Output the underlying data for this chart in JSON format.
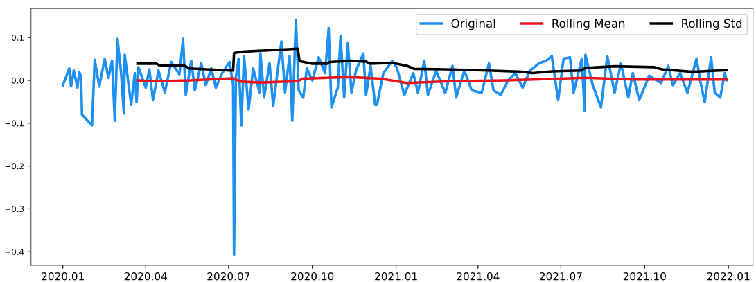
{
  "chart_data": {
    "type": "line",
    "legend": "top right",
    "grid": false,
    "line_style": "solid",
    "marker": "none",
    "xlim": [
      "2019-11-27",
      "2022-01-28"
    ],
    "ylim": [
      -0.432,
      0.168
    ],
    "xticks": [
      {
        "value": "2020-01-01",
        "label": "2020.01"
      },
      {
        "value": "2020-04-01",
        "label": "2020.04"
      },
      {
        "value": "2020-07-01",
        "label": "2020.07"
      },
      {
        "value": "2020-10-01",
        "label": "2020.10"
      },
      {
        "value": "2021-01-01",
        "label": "2021.01"
      },
      {
        "value": "2021-04-01",
        "label": "2021.04"
      },
      {
        "value": "2021-07-01",
        "label": "2021.07"
      },
      {
        "value": "2021-10-01",
        "label": "2021.10"
      },
      {
        "value": "2022-01-01",
        "label": "2022.01"
      }
    ],
    "yticks": [
      {
        "value": 0.1,
        "label": "0.1"
      },
      {
        "value": 0,
        "label": "0.0"
      },
      {
        "value": -0.1,
        "label": "−0.1"
      },
      {
        "value": -0.2,
        "label": "−0.2"
      },
      {
        "value": -0.3,
        "label": "−0.3"
      },
      {
        "value": -0.4,
        "label": "−0.4"
      }
    ],
    "series": [
      {
        "name": "Original",
        "color": "#1e90f0",
        "x": [
          "2020-01-01",
          "2020-01-05",
          "2020-01-08",
          "2020-01-10",
          "2020-01-13",
          "2020-01-17",
          "2020-01-19",
          "2020-01-21",
          "2020-01-22",
          "2020-02-02",
          "2020-02-05",
          "2020-02-10",
          "2020-02-16",
          "2020-02-20",
          "2020-02-24",
          "2020-02-27",
          "2020-03-01",
          "2020-03-05",
          "2020-03-08",
          "2020-03-09",
          "2020-03-16",
          "2020-03-20",
          "2020-03-22",
          "2020-03-24",
          "2020-04-01",
          "2020-04-05",
          "2020-04-09",
          "2020-04-15",
          "2020-04-22",
          "2020-04-29",
          "2020-05-08",
          "2020-05-12",
          "2020-05-15",
          "2020-05-21",
          "2020-05-25",
          "2020-06-01",
          "2020-06-06",
          "2020-06-12",
          "2020-06-17",
          "2020-06-24",
          "2020-07-02",
          "2020-07-06",
          "2020-07-07",
          "2020-07-09",
          "2020-07-12",
          "2020-07-15",
          "2020-07-18",
          "2020-07-23",
          "2020-07-28",
          "2020-08-04",
          "2020-08-05",
          "2020-08-09",
          "2020-08-15",
          "2020-08-19",
          "2020-08-28",
          "2020-09-01",
          "2020-09-06",
          "2020-09-09",
          "2020-09-13",
          "2020-09-16",
          "2020-09-21",
          "2020-09-25",
          "2020-10-01",
          "2020-10-08",
          "2020-10-15",
          "2020-10-19",
          "2020-10-22",
          "2020-10-29",
          "2020-11-01",
          "2020-11-05",
          "2020-11-09",
          "2020-11-13",
          "2020-11-18",
          "2020-11-26",
          "2020-11-29",
          "2020-12-04",
          "2020-12-09",
          "2020-12-11",
          "2020-12-18",
          "2020-12-28",
          "2021-01-02",
          "2021-01-10",
          "2021-01-20",
          "2021-01-25",
          "2021-02-01",
          "2021-02-05",
          "2021-02-14",
          "2021-02-24",
          "2021-03-04",
          "2021-03-08",
          "2021-03-17",
          "2021-03-25",
          "2021-04-05",
          "2021-04-13",
          "2021-04-18",
          "2021-04-26",
          "2021-05-04",
          "2021-05-12",
          "2021-05-20",
          "2021-05-28",
          "2021-06-07",
          "2021-06-15",
          "2021-06-21",
          "2021-06-28",
          "2021-07-04",
          "2021-07-11",
          "2021-07-15",
          "2021-07-24",
          "2021-07-27",
          "2021-07-28",
          "2021-08-05",
          "2021-08-14",
          "2021-08-21",
          "2021-08-29",
          "2021-09-05",
          "2021-09-13",
          "2021-09-18",
          "2021-09-25",
          "2021-10-06",
          "2021-10-19",
          "2021-10-27",
          "2021-11-01",
          "2021-11-09",
          "2021-11-17",
          "2021-11-27",
          "2021-12-01",
          "2021-12-06",
          "2021-12-13",
          "2021-12-17",
          "2021-12-23",
          "2021-12-28",
          "2021-12-30"
        ],
        "values": [
          -0.011,
          0.011,
          0.028,
          -0.014,
          0.023,
          -0.017,
          0.02,
          0.009,
          -0.08,
          -0.105,
          0.048,
          -0.014,
          0.051,
          0.006,
          0.046,
          -0.094,
          0.097,
          0.017,
          -0.077,
          0.06,
          -0.057,
          0.017,
          -0.051,
          0.031,
          -0.017,
          0.026,
          -0.046,
          0.023,
          -0.028,
          0.043,
          0.014,
          0.097,
          -0.034,
          0.046,
          -0.023,
          0.04,
          -0.011,
          0.028,
          -0.017,
          0.017,
          0.043,
          -0.011,
          -0.407,
          0.006,
          0.051,
          -0.105,
          0.057,
          -0.068,
          0.028,
          -0.028,
          0.063,
          -0.04,
          0.04,
          -0.06,
          0.091,
          -0.028,
          0.057,
          -0.094,
          0.142,
          -0.023,
          -0.04,
          0.028,
          0.0,
          0.054,
          0.017,
          0.122,
          -0.063,
          -0.017,
          0.103,
          -0.04,
          0.088,
          -0.028,
          0.023,
          0.063,
          -0.034,
          0.034,
          -0.057,
          -0.057,
          0.017,
          0.046,
          0.029,
          -0.034,
          0.017,
          -0.029,
          0.046,
          -0.034,
          0.023,
          -0.029,
          0.034,
          -0.04,
          0.023,
          -0.023,
          -0.029,
          0.04,
          -0.023,
          -0.034,
          0.0,
          0.017,
          -0.017,
          0.023,
          0.04,
          0.046,
          0.057,
          -0.046,
          0.051,
          0.054,
          -0.029,
          0.051,
          -0.071,
          0.06,
          -0.011,
          -0.063,
          0.057,
          -0.029,
          0.04,
          -0.04,
          0.017,
          -0.046,
          0.011,
          -0.006,
          0.034,
          -0.011,
          0.017,
          -0.029,
          0.051,
          0.0,
          -0.051,
          0.054,
          -0.029,
          -0.04,
          0.017,
          0.0
        ]
      },
      {
        "name": "Rolling Mean",
        "color": "#e8141b",
        "x": [
          "2020-03-23",
          "2020-04-10",
          "2020-05-20",
          "2020-07-05",
          "2020-07-15",
          "2020-08-05",
          "2020-09-15",
          "2020-09-20",
          "2020-11-10",
          "2020-12-15",
          "2021-01-13",
          "2021-03-01",
          "2021-05-01",
          "2021-07-28",
          "2021-09-20",
          "2021-12-30"
        ],
        "values": [
          0.0,
          -0.002,
          0.0,
          0.005,
          -0.003,
          -0.005,
          -0.002,
          0.004,
          0.008,
          0.004,
          -0.006,
          -0.002,
          0.0,
          0.006,
          0.002,
          0.002
        ]
      },
      {
        "name": "Rolling Std",
        "color": "#000000",
        "x": [
          "2020-03-23",
          "2020-04-13",
          "2020-04-16",
          "2020-05-13",
          "2020-05-19",
          "2020-07-03",
          "2020-07-06",
          "2020-07-07",
          "2020-07-16",
          "2020-09-15",
          "2020-09-17",
          "2020-10-01",
          "2020-10-17",
          "2020-10-20",
          "2020-11-13",
          "2020-11-29",
          "2020-12-03",
          "2020-12-28",
          "2021-01-13",
          "2021-01-21",
          "2021-02-24",
          "2021-04-13",
          "2021-05-20",
          "2021-05-31",
          "2021-06-21",
          "2021-07-23",
          "2021-07-28",
          "2021-08-29",
          "2021-10-11",
          "2021-10-20",
          "2021-11-22",
          "2021-12-30"
        ],
        "values": [
          0.039,
          0.039,
          0.035,
          0.035,
          0.028,
          0.023,
          0.023,
          0.064,
          0.067,
          0.074,
          0.045,
          0.039,
          0.039,
          0.043,
          0.046,
          0.044,
          0.039,
          0.041,
          0.034,
          0.027,
          0.026,
          0.023,
          0.02,
          0.017,
          0.021,
          0.023,
          0.029,
          0.033,
          0.031,
          0.026,
          0.02,
          0.024
        ]
      }
    ]
  }
}
